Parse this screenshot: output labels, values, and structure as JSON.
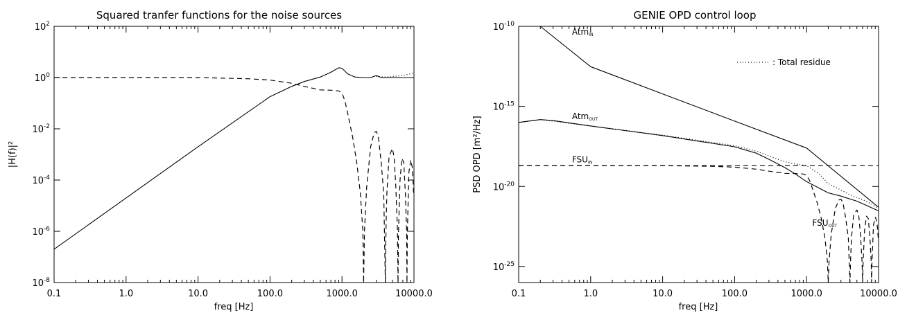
{
  "chart_data": [
    {
      "type": "line",
      "title": "Squared tranfer functions for the noise sources",
      "xlabel": "freq [Hz]",
      "ylabel": "|H(f)|²",
      "xscale": "log",
      "yscale": "log",
      "xlim": [
        0.1,
        10000
      ],
      "ylim": [
        1e-08,
        100
      ],
      "xtick_labels": [
        "0.1",
        "1.0",
        "10.0",
        "100.0",
        "1000.0",
        "10000.0"
      ],
      "ytick_labels": [
        {
          "base": "10",
          "exp": "2"
        },
        {
          "base": "10",
          "exp": "0"
        },
        {
          "base": "10",
          "exp": "-2"
        },
        {
          "base": "10",
          "exp": "-4"
        },
        {
          "base": "10",
          "exp": "-6"
        },
        {
          "base": "10",
          "exp": "-8"
        }
      ],
      "series": [
        {
          "style": "solid",
          "x": [
            0.1,
            1,
            10,
            100,
            200,
            300,
            500,
            700,
            900,
            1000,
            1200,
            1500,
            2000,
            2500,
            3000,
            3500,
            4000,
            6000,
            10000
          ],
          "y": [
            2e-07,
            2e-05,
            0.002,
            0.18,
            0.45,
            0.7,
            1.05,
            1.6,
            2.4,
            2.3,
            1.4,
            1.05,
            1.0,
            1.0,
            1.2,
            1.0,
            1.0,
            1.0,
            1.0
          ]
        },
        {
          "style": "dashed",
          "x": [
            0.1,
            10,
            50,
            100,
            200,
            300,
            500,
            700,
            900,
            1000,
            1100,
            1200,
            1400,
            1600,
            1800,
            1950,
            2000,
            2050,
            2200,
            2500,
            2800,
            3000,
            3200,
            3500,
            3800,
            4000,
            4100,
            4200,
            4500,
            5000,
            5300,
            5600,
            5900,
            6000,
            6100,
            6400,
            6800,
            7200,
            7600,
            7900,
            8000,
            8100,
            8500,
            9000,
            9500,
            9900
          ],
          "y": [
            1.0,
            1.0,
            0.9,
            0.8,
            0.6,
            0.45,
            0.33,
            0.32,
            0.3,
            0.25,
            0.12,
            0.04,
            0.005,
            0.0005,
            3e-05,
            1e-06,
            1e-08,
            1e-06,
            5e-05,
            0.002,
            0.007,
            0.008,
            0.005,
            0.0005,
            3e-05,
            1e-08,
            2e-06,
            3e-05,
            0.0008,
            0.0017,
            0.0008,
            5e-05,
            1e-06,
            1e-08,
            1e-06,
            0.0001,
            0.0007,
            0.0005,
            3e-05,
            1e-06,
            1e-08,
            1e-06,
            0.0002,
            0.0006,
            0.0003,
            3e-05
          ]
        },
        {
          "style": "dotted",
          "x": [
            3000,
            4000,
            5000,
            6000,
            7000,
            8000,
            10000
          ],
          "y": [
            1.1,
            1.05,
            1.1,
            1.15,
            1.2,
            1.3,
            1.5
          ]
        }
      ]
    },
    {
      "type": "line",
      "title": "GENIE OPD control loop",
      "xlabel": "freq [Hz]",
      "ylabel": "PSD OPD [m²/Hz]",
      "xscale": "log",
      "yscale": "log",
      "xlim": [
        0.1,
        10000
      ],
      "ylim": [
        1e-26,
        1e-10
      ],
      "xtick_labels": [
        "0.1",
        "1.0",
        "10.0",
        "100.0",
        "1000.0",
        "10000.0"
      ],
      "ytick_labels": [
        {
          "base": "10",
          "exp": "-10"
        },
        {
          "base": "10",
          "exp": "-15"
        },
        {
          "base": "10",
          "exp": "-20"
        },
        {
          "base": "10",
          "exp": "-25"
        }
      ],
      "legend": {
        "position": "top-right",
        "entries": [
          {
            "style": "dotted",
            "label": ": Total residue"
          }
        ]
      },
      "annotations": [
        {
          "text": "Atm",
          "sub": "IN",
          "x": 0.55,
          "y": 3e-11
        },
        {
          "text": "Atm",
          "sub": "OUT",
          "x": 0.55,
          "y": 1.6e-16
        },
        {
          "text": "FSU",
          "sub": "IN",
          "x": 0.55,
          "y": 3.2e-19
        },
        {
          "text": "FSU",
          "sub": "OUT",
          "x": 1200,
          "y": 3.5e-23
        }
      ],
      "series": [
        {
          "name": "Atm_IN",
          "style": "solid",
          "x": [
            0.1,
            0.2,
            1,
            10,
            100,
            1000,
            10000
          ],
          "y": [
            3.5e-10,
            1e-10,
            3e-13,
            6e-15,
            1.2e-16,
            2.5e-18,
            5e-22
          ]
        },
        {
          "name": "Atm_OUT",
          "style": "solid",
          "x": [
            0.1,
            0.2,
            0.3,
            1,
            10,
            100,
            200,
            300,
            500,
            700,
            1000,
            2000,
            3000,
            5000,
            10000
          ],
          "y": [
            1e-16,
            1.5e-16,
            1.3e-16,
            6e-17,
            1.5e-17,
            3e-18,
            1.2e-18,
            5e-19,
            1.5e-19,
            6e-20,
            2e-20,
            4e-21,
            2.5e-21,
            1.2e-21,
            3e-22
          ]
        },
        {
          "name": "FSU_IN",
          "style": "dashed",
          "x": [
            0.1,
            10000
          ],
          "y": [
            2e-19,
            2e-19
          ]
        },
        {
          "name": "FSU_OUT",
          "style": "dashed",
          "x": [
            0.1,
            10,
            50,
            100,
            200,
            300,
            500,
            700,
            900,
            1000,
            1100,
            1200,
            1400,
            1600,
            1800,
            1950,
            2000,
            2050,
            2200,
            2500,
            2800,
            3000,
            3200,
            3500,
            3800,
            4000,
            4100,
            4200,
            4500,
            5000,
            5300,
            5600,
            5900,
            6000,
            6100,
            6400,
            6800,
            7200,
            7600,
            7900,
            8000,
            8100,
            8500,
            9000,
            9500,
            9900
          ],
          "y": [
            2e-19,
            2e-19,
            1.8e-19,
            1.6e-19,
            1.2e-19,
            9e-20,
            6.6e-20,
            6.4e-20,
            6e-20,
            5e-20,
            2.4e-20,
            8e-21,
            1e-21,
            1e-22,
            6e-24,
            2e-25,
            2e-27,
            2e-25,
            1e-23,
            4e-22,
            1.4e-21,
            1.6e-21,
            1e-21,
            1e-22,
            6e-24,
            2e-27,
            4e-25,
            6e-24,
            1.6e-22,
            3.4e-22,
            1.6e-22,
            1e-23,
            2e-25,
            2e-27,
            2e-25,
            2e-23,
            1.4e-22,
            1e-22,
            6e-24,
            2e-25,
            2e-27,
            2e-25,
            4e-23,
            1.2e-22,
            6e-23,
            6e-24
          ]
        },
        {
          "name": "Total residue",
          "style": "dotted",
          "x": [
            0.1,
            0.2,
            1,
            10,
            100,
            200,
            300,
            400,
            500,
            700,
            1000,
            1500,
            2000,
            3000,
            4000,
            5000,
            6000,
            8000,
            10000
          ],
          "y": [
            1e-16,
            1.5e-16,
            6e-17,
            1.6e-17,
            3.5e-18,
            1.6e-18,
            8e-19,
            5e-19,
            3.5e-19,
            2.5e-19,
            2e-19,
            6e-20,
            1.5e-20,
            6e-21,
            3e-21,
            2e-21,
            1.5e-21,
            8e-22,
            4e-22
          ]
        }
      ]
    }
  ]
}
